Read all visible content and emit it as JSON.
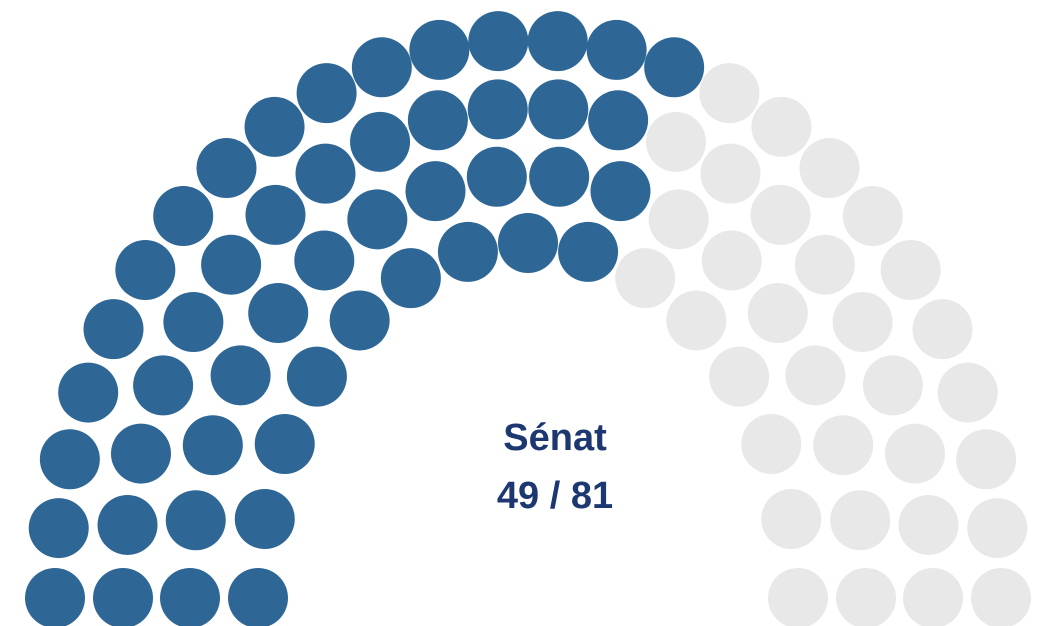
{
  "chart_data": {
    "type": "parliament",
    "title": "Sénat",
    "seats_filled": 49,
    "seats_total": 81,
    "value_label": "49 / 81",
    "filled_color": "#2e6796",
    "empty_color": "#e8e8e8",
    "text_color": "#1d3770"
  }
}
